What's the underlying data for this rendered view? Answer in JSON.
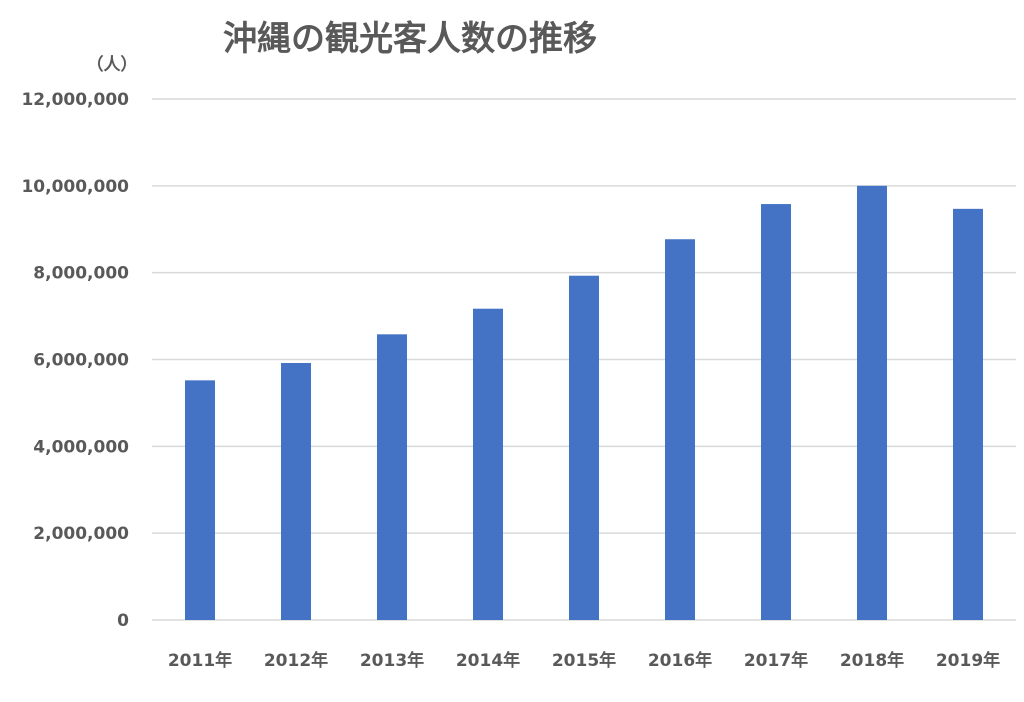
{
  "chart_data": {
    "type": "bar",
    "title": "沖縄の観光客人数の推移",
    "unit_label": "（人）",
    "xlabel": "",
    "ylabel": "",
    "categories": [
      "2011年",
      "2012年",
      "2013年",
      "2014年",
      "2015年",
      "2016年",
      "2017年",
      "2018年",
      "2019年"
    ],
    "values": [
      5520000,
      5920000,
      6580000,
      7170000,
      7930000,
      8770000,
      9580000,
      10000000,
      9470000
    ],
    "ylim": [
      0,
      12000000
    ],
    "yticks": [
      0,
      2000000,
      4000000,
      6000000,
      8000000,
      10000000,
      12000000
    ],
    "ytick_labels": [
      "0",
      "2,000,000",
      "4,000,000",
      "6,000,000",
      "8,000,000",
      "10,000,000",
      "12,000,000"
    ],
    "grid": true,
    "legend": "none",
    "bar_color": "#4472c4"
  }
}
